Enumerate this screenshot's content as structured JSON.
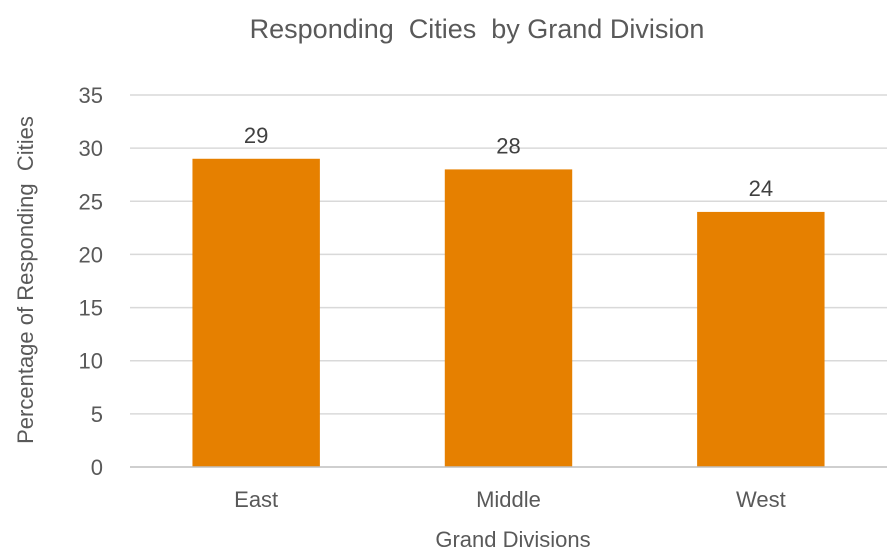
{
  "chart_data": {
    "type": "bar",
    "title": "Responding  Cities  by Grand Division",
    "xlabel": "Grand Divisions",
    "ylabel": "Percentage of Responding  Cities",
    "categories": [
      "East",
      "Middle",
      "West"
    ],
    "values": [
      29,
      28,
      24
    ],
    "data_labels": [
      "29",
      "28",
      "24"
    ],
    "ylim": [
      0,
      35
    ],
    "yticks": [
      0,
      5,
      10,
      15,
      20,
      25,
      30,
      35
    ],
    "ytick_labels": [
      "0",
      "5",
      "10",
      "15",
      "20",
      "25",
      "30",
      "35"
    ],
    "grid": true,
    "legend": "none",
    "colors": {
      "bar": "#E68000",
      "grid": "#D9D9D9",
      "axis": "#BFBFBF",
      "text": "#404040"
    }
  }
}
